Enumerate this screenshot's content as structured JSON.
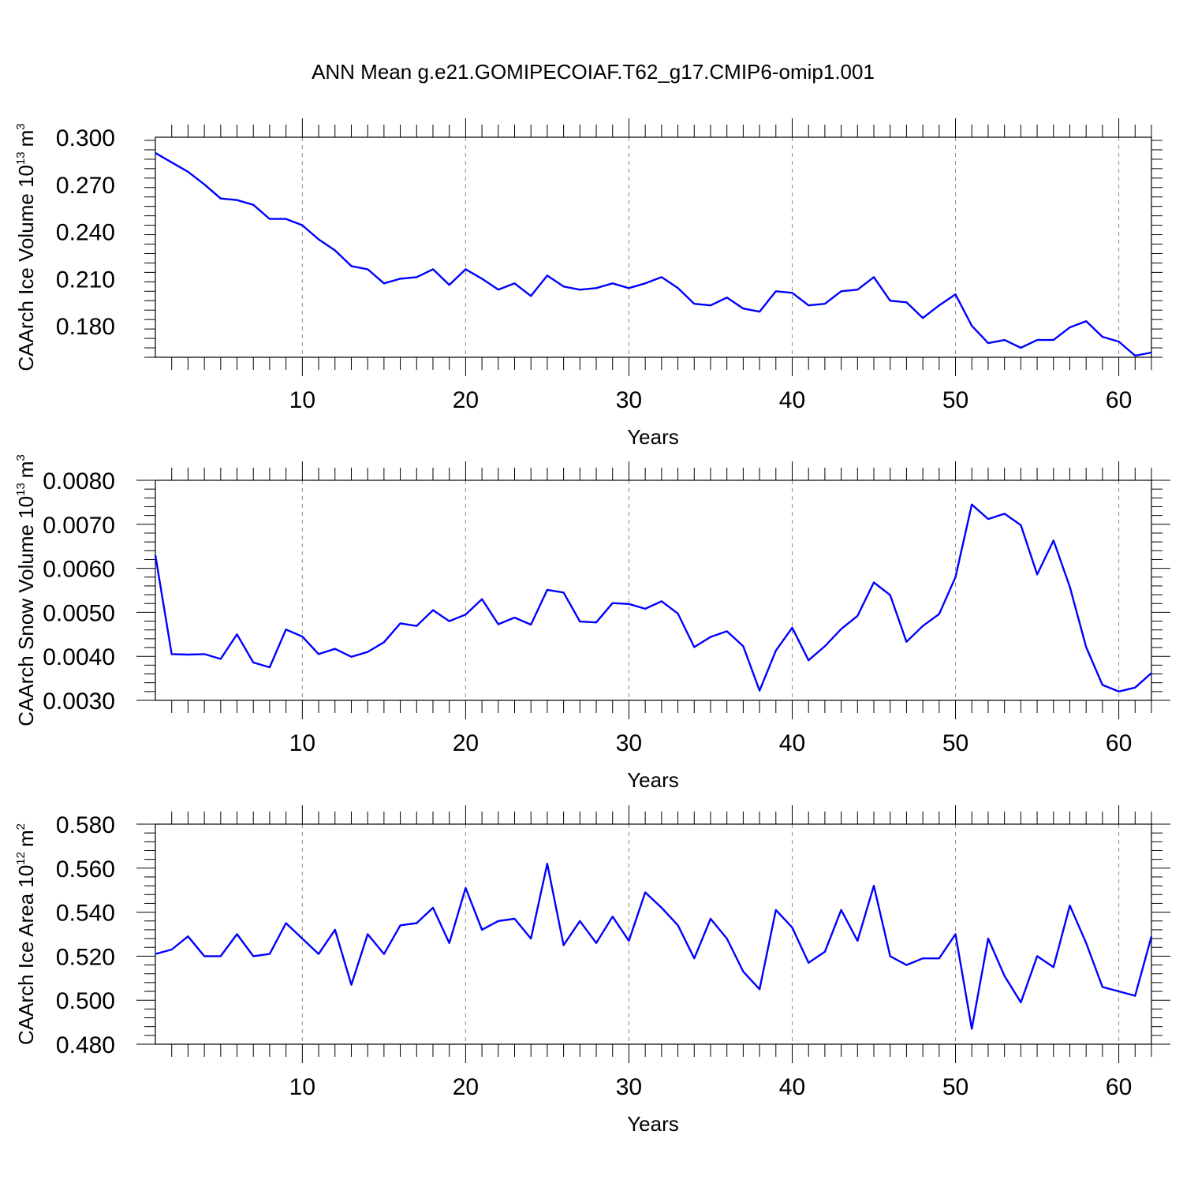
{
  "figure_title": "ANN Mean g.e21.GOMIPECOIAF.T62_g17.CMIP6-omip1.001",
  "color_series": "#0000ff",
  "chart_data": [
    {
      "type": "line",
      "ylabel_main": "CAArch Ice Volume 10",
      "ylabel_exp": "13",
      "ylabel_unit": "m",
      "ylabel_unit_exp": "3",
      "xlabel": "Years",
      "xlim": [
        1,
        62
      ],
      "ylim": [
        0.16,
        0.3
      ],
      "yticks": [
        "0.300",
        "0.270",
        "0.240",
        "0.210",
        "0.180"
      ],
      "xticks": [
        "10",
        "20",
        "30",
        "40",
        "50",
        "60"
      ],
      "grid_x": true,
      "series": [
        {
          "x": [
            1,
            2,
            3,
            4,
            5,
            6,
            7,
            8,
            9,
            10,
            11,
            12,
            13,
            14,
            15,
            16,
            17,
            18,
            19,
            20,
            21,
            22,
            23,
            24,
            25,
            26,
            27,
            28,
            29,
            30,
            31,
            32,
            33,
            34,
            35,
            36,
            37,
            38,
            39,
            40,
            41,
            42,
            43,
            44,
            45,
            46,
            47,
            48,
            49,
            50,
            51,
            52,
            53,
            54,
            55,
            56,
            57,
            58,
            59,
            60,
            61,
            62
          ],
          "values": [
            0.29,
            0.284,
            0.278,
            0.27,
            0.261,
            0.26,
            0.257,
            0.248,
            0.248,
            0.244,
            0.235,
            0.228,
            0.218,
            0.216,
            0.207,
            0.21,
            0.211,
            0.216,
            0.206,
            0.216,
            0.21,
            0.203,
            0.207,
            0.199,
            0.212,
            0.205,
            0.203,
            0.204,
            0.207,
            0.204,
            0.207,
            0.211,
            0.204,
            0.194,
            0.193,
            0.198,
            0.191,
            0.189,
            0.202,
            0.201,
            0.193,
            0.194,
            0.202,
            0.203,
            0.211,
            0.196,
            0.195,
            0.185,
            0.193,
            0.2,
            0.18,
            0.169,
            0.171,
            0.166,
            0.171,
            0.171,
            0.179,
            0.183,
            0.173,
            0.17,
            0.161,
            0.163
          ]
        }
      ]
    },
    {
      "type": "line",
      "ylabel_main": "CAArch Snow Volume 10",
      "ylabel_exp": "13",
      "ylabel_unit": "m",
      "ylabel_unit_exp": "3",
      "xlabel": "Years",
      "xlim": [
        1,
        62
      ],
      "ylim": [
        0.003,
        0.008
      ],
      "yticks": [
        "0.0080",
        "0.0070",
        "0.0060",
        "0.0050",
        "0.0040",
        "0.0030"
      ],
      "xticks": [
        "10",
        "20",
        "30",
        "40",
        "50",
        "60"
      ],
      "grid_x": true,
      "series": [
        {
          "x": [
            1,
            2,
            3,
            4,
            5,
            6,
            7,
            8,
            9,
            10,
            11,
            12,
            13,
            14,
            15,
            16,
            17,
            18,
            19,
            20,
            21,
            22,
            23,
            24,
            25,
            26,
            27,
            28,
            29,
            30,
            31,
            32,
            33,
            34,
            35,
            36,
            37,
            38,
            39,
            40,
            41,
            42,
            43,
            44,
            45,
            46,
            47,
            48,
            49,
            50,
            51,
            52,
            53,
            54,
            55,
            56,
            57,
            58,
            59,
            60,
            61,
            62
          ],
          "values": [
            0.0063,
            0.00405,
            0.00404,
            0.00405,
            0.00394,
            0.0045,
            0.00386,
            0.00375,
            0.00461,
            0.00445,
            0.00405,
            0.00417,
            0.00399,
            0.0041,
            0.00432,
            0.00475,
            0.00469,
            0.00505,
            0.0048,
            0.00495,
            0.0053,
            0.00473,
            0.00488,
            0.00472,
            0.00551,
            0.00545,
            0.00479,
            0.00477,
            0.00521,
            0.00519,
            0.00508,
            0.00525,
            0.00497,
            0.00421,
            0.00444,
            0.00457,
            0.00423,
            0.00322,
            0.00413,
            0.00465,
            0.00391,
            0.00423,
            0.00462,
            0.00492,
            0.00568,
            0.00539,
            0.00433,
            0.00469,
            0.00496,
            0.0058,
            0.00745,
            0.00712,
            0.00724,
            0.00698,
            0.00586,
            0.00663,
            0.00558,
            0.00421,
            0.00335,
            0.0032,
            0.00329,
            0.00362
          ]
        }
      ]
    },
    {
      "type": "line",
      "ylabel_main": "CAArch Ice Area 10",
      "ylabel_exp": "12",
      "ylabel_unit": "m",
      "ylabel_unit_exp": "2",
      "xlabel": "Years",
      "xlim": [
        1,
        62
      ],
      "ylim": [
        0.48,
        0.58
      ],
      "yticks": [
        "0.580",
        "0.560",
        "0.540",
        "0.520",
        "0.500",
        "0.480"
      ],
      "xticks": [
        "10",
        "20",
        "30",
        "40",
        "50",
        "60"
      ],
      "grid_x": true,
      "series": [
        {
          "x": [
            1,
            2,
            3,
            4,
            5,
            6,
            7,
            8,
            9,
            10,
            11,
            12,
            13,
            14,
            15,
            16,
            17,
            18,
            19,
            20,
            21,
            22,
            23,
            24,
            25,
            26,
            27,
            28,
            29,
            30,
            31,
            32,
            33,
            34,
            35,
            36,
            37,
            38,
            39,
            40,
            41,
            42,
            43,
            44,
            45,
            46,
            47,
            48,
            49,
            50,
            51,
            52,
            53,
            54,
            55,
            56,
            57,
            58,
            59,
            60,
            61,
            62
          ],
          "values": [
            0.521,
            0.523,
            0.529,
            0.52,
            0.52,
            0.53,
            0.52,
            0.521,
            0.535,
            0.528,
            0.521,
            0.532,
            0.507,
            0.53,
            0.521,
            0.534,
            0.535,
            0.542,
            0.526,
            0.551,
            0.532,
            0.536,
            0.537,
            0.528,
            0.562,
            0.525,
            0.536,
            0.526,
            0.538,
            0.527,
            0.549,
            0.542,
            0.534,
            0.519,
            0.537,
            0.528,
            0.513,
            0.505,
            0.541,
            0.533,
            0.517,
            0.522,
            0.541,
            0.527,
            0.552,
            0.52,
            0.516,
            0.519,
            0.519,
            0.53,
            0.487,
            0.528,
            0.511,
            0.499,
            0.52,
            0.515,
            0.543,
            0.526,
            0.506,
            0.504,
            0.502,
            0.529
          ]
        }
      ]
    }
  ]
}
